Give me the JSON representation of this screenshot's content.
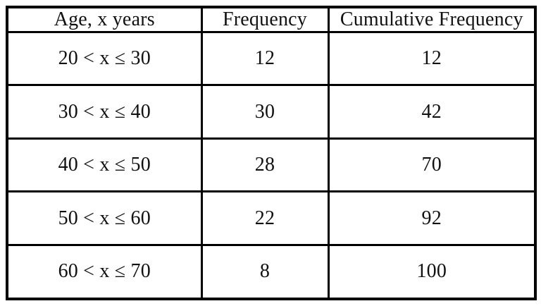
{
  "chart_data": {
    "type": "table",
    "title": "",
    "columns": [
      "Age, x years",
      "Frequency",
      "Cumulative Frequency"
    ],
    "rows": [
      [
        "20 < x ≤ 30",
        "12",
        "12"
      ],
      [
        "30 < x ≤ 40",
        "30",
        "42"
      ],
      [
        "40 < x ≤ 50",
        "28",
        "70"
      ],
      [
        "50 < x ≤ 60",
        "22",
        "92"
      ],
      [
        "60 < x ≤ 70",
        "8",
        "100"
      ]
    ],
    "frequencies": [
      12,
      30,
      28,
      22,
      8
    ],
    "cumulative_frequencies": [
      12,
      42,
      70,
      92,
      100
    ],
    "age_intervals": [
      [
        20,
        30
      ],
      [
        30,
        40
      ],
      [
        40,
        50
      ],
      [
        50,
        60
      ],
      [
        60,
        70
      ]
    ],
    "grid": true,
    "border_color": "#000000",
    "background_color": "#ffffff",
    "text_color": "#111111"
  }
}
